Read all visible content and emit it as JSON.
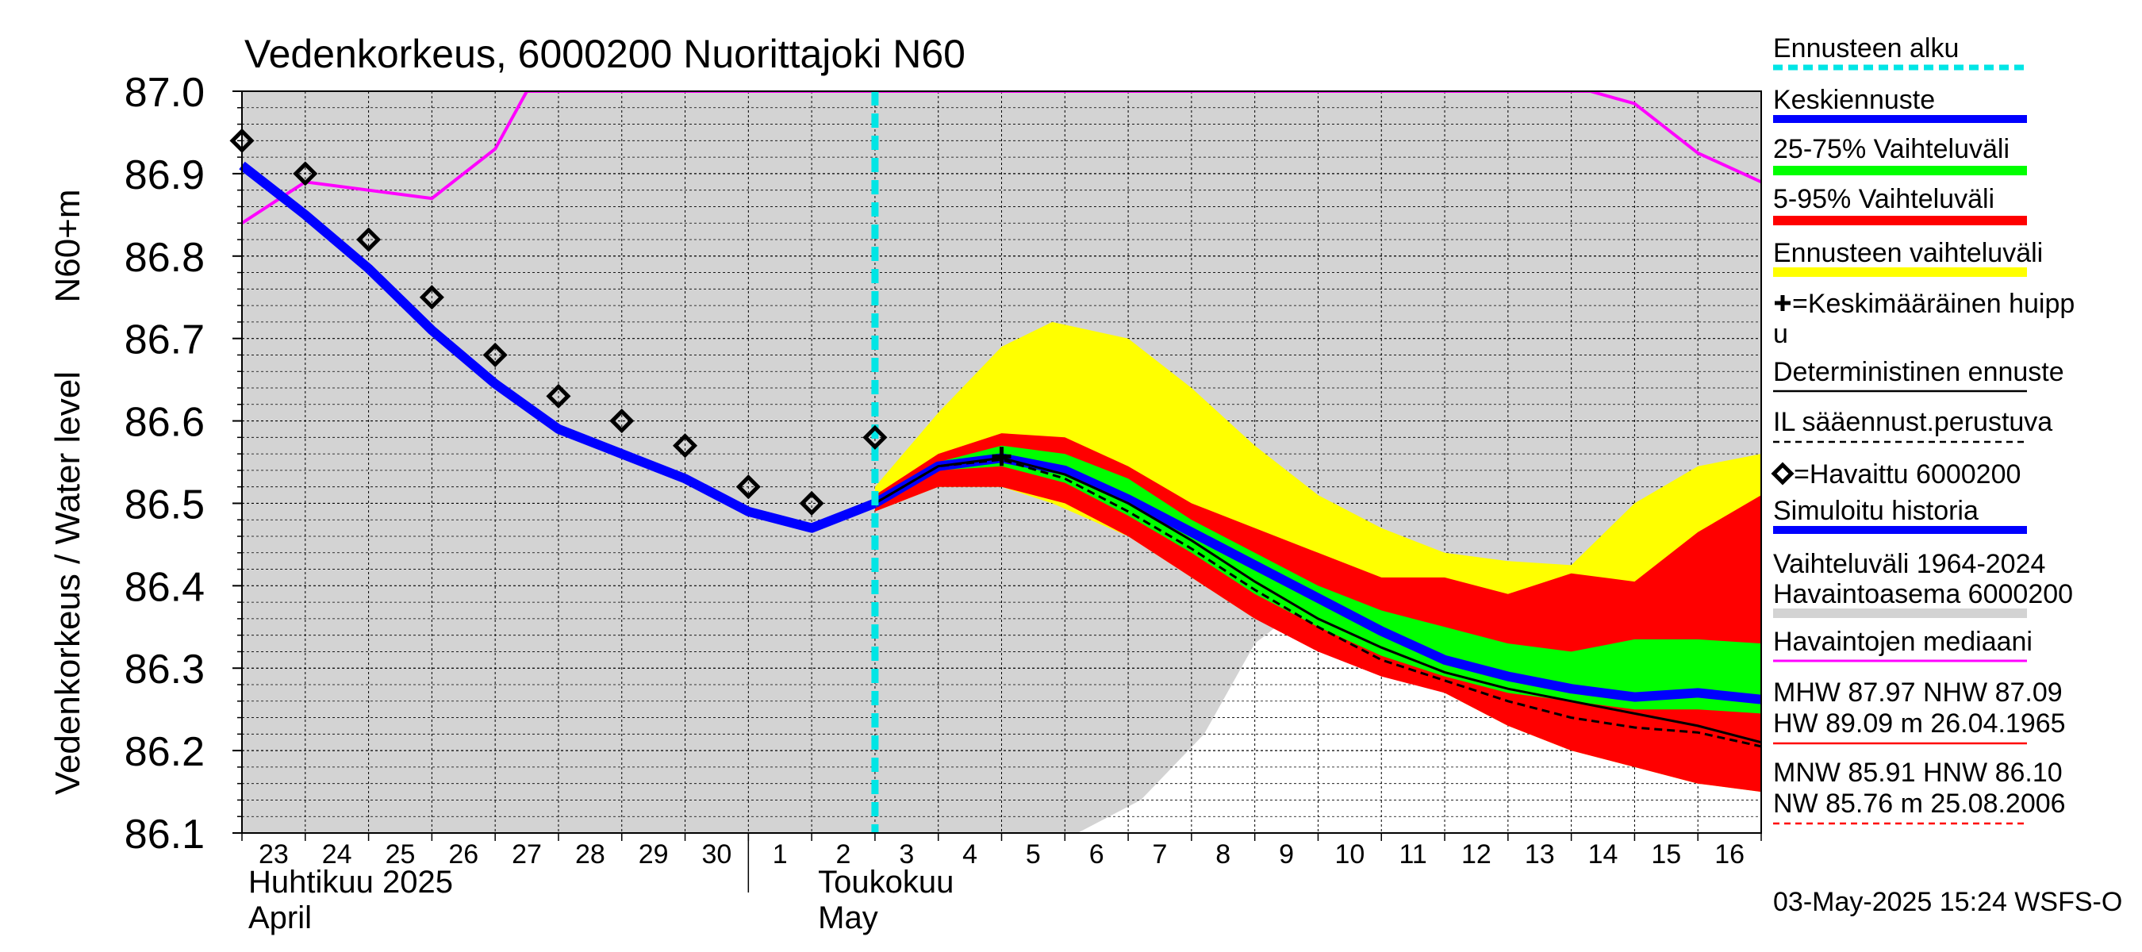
{
  "chart_data": {
    "type": "line",
    "title": "Vedenkorkeus, 6000200 Nuorittajoki N60",
    "ylabel": "Vedenkorkeus / Water level",
    "yunit": "N60+m",
    "ylim": [
      86.1,
      87.0
    ],
    "yticks": [
      86.1,
      86.2,
      86.3,
      86.4,
      86.5,
      86.6,
      86.7,
      86.8,
      86.9,
      87.0
    ],
    "ytick_labels": [
      "86.1",
      "86.2",
      "86.3",
      "86.4",
      "86.5",
      "86.6",
      "86.7",
      "86.8",
      "86.9",
      "87.0"
    ],
    "x_range": [
      "2025-04-23",
      "2025-05-17"
    ],
    "x_day_labels": [
      {
        "date": "2025-04-23",
        "label": "23"
      },
      {
        "date": "2025-04-24",
        "label": "24"
      },
      {
        "date": "2025-04-25",
        "label": "25"
      },
      {
        "date": "2025-04-26",
        "label": "26"
      },
      {
        "date": "2025-04-27",
        "label": "27"
      },
      {
        "date": "2025-04-28",
        "label": "28"
      },
      {
        "date": "2025-04-29",
        "label": "29"
      },
      {
        "date": "2025-04-30",
        "label": "30"
      },
      {
        "date": "2025-05-01",
        "label": "1"
      },
      {
        "date": "2025-05-02",
        "label": "2"
      },
      {
        "date": "2025-05-03",
        "label": "3"
      },
      {
        "date": "2025-05-04",
        "label": "4"
      },
      {
        "date": "2025-05-05",
        "label": "5"
      },
      {
        "date": "2025-05-06",
        "label": "6"
      },
      {
        "date": "2025-05-07",
        "label": "7"
      },
      {
        "date": "2025-05-08",
        "label": "8"
      },
      {
        "date": "2025-05-09",
        "label": "9"
      },
      {
        "date": "2025-05-10",
        "label": "10"
      },
      {
        "date": "2025-05-11",
        "label": "11"
      },
      {
        "date": "2025-05-12",
        "label": "12"
      },
      {
        "date": "2025-05-13",
        "label": "13"
      },
      {
        "date": "2025-05-14",
        "label": "14"
      },
      {
        "date": "2025-05-15",
        "label": "15"
      },
      {
        "date": "2025-05-16",
        "label": "16"
      }
    ],
    "month_labels": [
      {
        "date": "2025-04-23",
        "fi": "Huhtikuu  2025",
        "en": "April"
      },
      {
        "date": "2025-05-02",
        "fi": "Toukokuu",
        "en": "May"
      }
    ],
    "month_boundary": "2025-05-01",
    "forecast_start": "2025-05-03",
    "grid": true,
    "legend_position": "right",
    "colors": {
      "plot_background": "#d3d3d3",
      "forecast_start": "#00e5e5",
      "mean_forecast": "#0000ff",
      "range_25_75": "#00ff00",
      "range_5_95": "#ff0000",
      "forecast_range": "#ffff00",
      "deterministic": "#000000",
      "weather_based": "#000000",
      "observed": "#000000",
      "simulated_history": "#0000ff",
      "history_range": "#d3d3d3",
      "observed_median": "#ff00ff",
      "hw_line": "#ff0000",
      "nw_line": "#ff0000"
    },
    "history_range_lower": [
      {
        "x": "2025-05-05.1",
        "y": 86.08
      },
      {
        "x": "2025-05-06.2",
        "y": 86.1
      },
      {
        "x": "2025-05-07.2",
        "y": 86.14
      },
      {
        "x": "2025-05-08.2",
        "y": 86.22
      },
      {
        "x": "2025-05-09.0",
        "y": 86.33
      },
      {
        "x": "2025-05-09.5",
        "y": 86.36
      },
      {
        "x": "2025-05-10.0",
        "y": 86.34
      },
      {
        "x": "2025-05-11.0",
        "y": 86.32
      },
      {
        "x": "2025-05-12.0",
        "y": 86.3
      },
      {
        "x": "2025-05-13.0",
        "y": 86.29
      },
      {
        "x": "2025-05-14.0",
        "y": 86.28
      },
      {
        "x": "2025-05-15.0",
        "y": 86.265
      },
      {
        "x": "2025-05-16.0",
        "y": 86.25
      },
      {
        "x": "2025-05-17.0",
        "y": 86.24
      }
    ],
    "observed_median": [
      {
        "x": "2025-04-23.0",
        "y": 86.84
      },
      {
        "x": "2025-04-24.0",
        "y": 86.89
      },
      {
        "x": "2025-04-26.0",
        "y": 86.87
      },
      {
        "x": "2025-04-27.0",
        "y": 86.93
      },
      {
        "x": "2025-04-27.5",
        "y": 87.0
      },
      {
        "x": "2025-05-14.3",
        "y": 87.0
      },
      {
        "x": "2025-05-15.0",
        "y": 86.985
      },
      {
        "x": "2025-05-16.0",
        "y": 86.925
      },
      {
        "x": "2025-05-17.0",
        "y": 86.89
      }
    ],
    "forecast_range_band": {
      "dates": [
        "2025-05-03.0",
        "2025-05-04.0",
        "2025-05-05.0",
        "2025-05-05.8",
        "2025-05-07.0",
        "2025-05-08.0",
        "2025-05-09.0",
        "2025-05-10.0",
        "2025-05-11.0",
        "2025-05-12.0",
        "2025-05-13.0",
        "2025-05-14.0",
        "2025-05-15.0",
        "2025-05-16.0",
        "2025-05-17.0"
      ],
      "upper": [
        86.52,
        86.61,
        86.69,
        86.72,
        86.7,
        86.64,
        86.57,
        86.51,
        86.47,
        86.44,
        86.43,
        86.425,
        86.5,
        86.545,
        86.56
      ],
      "lower": [
        86.49,
        86.52,
        86.52,
        86.5,
        86.46,
        86.41,
        86.36,
        86.33,
        86.3,
        86.27,
        86.23,
        86.2,
        86.18,
        86.16,
        86.15
      ]
    },
    "range_5_95_band": {
      "dates": [
        "2025-05-03.0",
        "2025-05-04.0",
        "2025-05-05.0",
        "2025-05-06.0",
        "2025-05-07.0",
        "2025-05-08.0",
        "2025-05-09.0",
        "2025-05-10.0",
        "2025-05-11.0",
        "2025-05-12.0",
        "2025-05-13.0",
        "2025-05-14.0",
        "2025-05-15.0",
        "2025-05-16.0",
        "2025-05-17.0"
      ],
      "upper": [
        86.51,
        86.56,
        86.585,
        86.58,
        86.545,
        86.5,
        86.47,
        86.44,
        86.41,
        86.41,
        86.39,
        86.415,
        86.405,
        86.465,
        86.51
      ],
      "lower": [
        86.49,
        86.52,
        86.52,
        86.5,
        86.46,
        86.41,
        86.36,
        86.32,
        86.29,
        86.27,
        86.23,
        86.2,
        86.18,
        86.16,
        86.15
      ]
    },
    "range_25_75_band": {
      "dates": [
        "2025-05-03.0",
        "2025-05-04.0",
        "2025-05-05.0",
        "2025-05-06.0",
        "2025-05-07.0",
        "2025-05-08.0",
        "2025-05-09.0",
        "2025-05-10.0",
        "2025-05-11.0",
        "2025-05-12.0",
        "2025-05-13.0",
        "2025-05-14.0",
        "2025-05-15.0",
        "2025-05-16.0",
        "2025-05-17.0"
      ],
      "upper": [
        86.505,
        86.55,
        86.57,
        86.56,
        86.53,
        86.48,
        86.44,
        86.4,
        86.37,
        86.35,
        86.33,
        86.32,
        86.335,
        86.335,
        86.33
      ],
      "lower": [
        86.495,
        86.54,
        86.545,
        86.525,
        86.485,
        86.44,
        86.39,
        86.35,
        86.315,
        86.29,
        86.27,
        86.26,
        86.25,
        86.25,
        86.245
      ]
    },
    "mean_forecast": {
      "dates": [
        "2025-05-03.0",
        "2025-05-04.0",
        "2025-05-05.0",
        "2025-05-06.0",
        "2025-05-07.0",
        "2025-05-08.0",
        "2025-05-09.0",
        "2025-05-10.0",
        "2025-05-11.0",
        "2025-05-12.0",
        "2025-05-13.0",
        "2025-05-14.0",
        "2025-05-15.0",
        "2025-05-16.0",
        "2025-05-17.0"
      ],
      "values": [
        86.5,
        86.545,
        86.555,
        86.54,
        86.505,
        86.465,
        86.425,
        86.385,
        86.345,
        86.31,
        86.29,
        86.275,
        86.265,
        86.27,
        86.262
      ]
    },
    "deterministic": {
      "dates": [
        "2025-05-03.0",
        "2025-05-04.0",
        "2025-05-05.0",
        "2025-05-06.0",
        "2025-05-07.0",
        "2025-05-08.0",
        "2025-05-09.0",
        "2025-05-10.0",
        "2025-05-11.0",
        "2025-05-12.0",
        "2025-05-13.0",
        "2025-05-14.0",
        "2025-05-15.0",
        "2025-05-16.0",
        "2025-05-17.0"
      ],
      "values": [
        86.5,
        86.545,
        86.555,
        86.535,
        86.5,
        86.455,
        86.405,
        86.36,
        86.325,
        86.295,
        86.275,
        86.26,
        86.245,
        86.23,
        86.21
      ]
    },
    "weather_based": {
      "dates": [
        "2025-05-03.0",
        "2025-05-04.0",
        "2025-05-05.0",
        "2025-05-06.0",
        "2025-05-07.0",
        "2025-05-08.0",
        "2025-05-09.0",
        "2025-05-10.0",
        "2025-05-11.0",
        "2025-05-12.0",
        "2025-05-13.0",
        "2025-05-14.0",
        "2025-05-15.0",
        "2025-05-16.0",
        "2025-05-17.0"
      ],
      "values": [
        86.5,
        86.545,
        86.553,
        86.53,
        86.49,
        86.445,
        86.395,
        86.35,
        86.31,
        86.285,
        86.26,
        86.24,
        86.228,
        86.222,
        86.205
      ]
    },
    "mean_peak": {
      "x": "2025-05-05.0",
      "y": 86.557
    },
    "simulated_history": {
      "dates": [
        "2025-04-23.0",
        "2025-04-24.0",
        "2025-04-25.0",
        "2025-04-26.0",
        "2025-04-27.0",
        "2025-04-28.0",
        "2025-04-29.0",
        "2025-04-30.0",
        "2025-05-01.0",
        "2025-05-02.0",
        "2025-05-03.0"
      ],
      "values": [
        86.91,
        86.85,
        86.785,
        86.71,
        86.645,
        86.59,
        86.56,
        86.53,
        86.49,
        86.47,
        86.5
      ]
    },
    "observed": {
      "dates": [
        "2025-04-23.0",
        "2025-04-24.0",
        "2025-04-25.0",
        "2025-04-26.0",
        "2025-04-27.0",
        "2025-04-28.0",
        "2025-04-29.0",
        "2025-04-30.0",
        "2025-05-01.0",
        "2025-05-02.0",
        "2025-05-03.0"
      ],
      "values": [
        86.94,
        86.9,
        86.82,
        86.75,
        86.68,
        86.63,
        86.6,
        86.57,
        86.52,
        86.5,
        86.58
      ]
    },
    "legend": [
      {
        "label": "Ennusteen alku",
        "style": "dashed-cyan"
      },
      {
        "label": "Keskiennuste",
        "style": "blue-thick"
      },
      {
        "label": "25-75% Vaihteluväli",
        "style": "green-thick"
      },
      {
        "label": "5-95% Vaihteluväli",
        "style": "red-thick"
      },
      {
        "label": "Ennusteen vaihteluväli",
        "style": "yellow-thick"
      },
      {
        "label": "+=Keskimääräinen huippu",
        "style": "none"
      },
      {
        "label": "Deterministinen ennuste",
        "style": "black-thin"
      },
      {
        "label": "IL sääennust.perustuva",
        "style": "black-dashed"
      },
      {
        "label": "=Havaittu 6000200",
        "style": "diamond"
      },
      {
        "label": "Simuloitu historia",
        "style": "blue-thick"
      },
      {
        "label": "Vaihteluväli 1964-2024 Havaintoasema 6000200",
        "style": "gray-thick"
      },
      {
        "label": "Havaintojen mediaani",
        "style": "magenta-thin"
      },
      {
        "label": "MHW  87.97 NHW  87.09 HW  89.09 m 26.04.1965",
        "style": "red-thin"
      },
      {
        "label": "MNW  85.91 HNW  86.10 NW  85.76 m 25.08.2006",
        "style": "red-dashed"
      }
    ],
    "stats": {
      "line1": "MHW  87.97 NHW  87.09",
      "line2": "HW  89.09 m 26.04.1965",
      "line3": "MNW  85.91 HNW  86.10",
      "line4": "NW  85.76 m 25.08.2006"
    },
    "timestamp": "03-May-2025 15:24 WSFS-O"
  }
}
